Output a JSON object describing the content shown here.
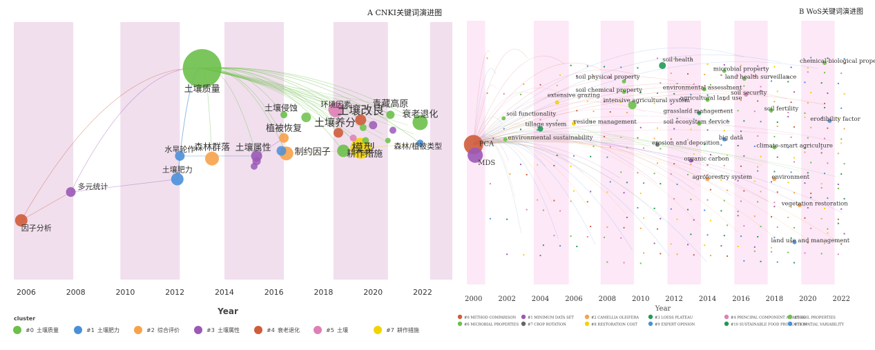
{
  "colors": {
    "c0": "#6cc04a",
    "c1": "#4a90d9",
    "c2": "#f7a24b",
    "c3": "#9b59b6",
    "c4": "#cf5c3a",
    "c5": "#de7fb5",
    "c6": "#6cc04a",
    "c7": "#f2d300",
    "c8": "#f2d300",
    "c9": "#4a90d9",
    "c10": "#1f9a55",
    "c11": "#4a90d9",
    "band_a": "#f1dfee",
    "band_b": "#fde8f7"
  },
  "panel_a": {
    "title": "A   CNKI关键词演进图",
    "xlabel": "Year",
    "ticks": [
      "2006",
      "2008",
      "2010",
      "2012",
      "2014",
      "2016",
      "2018",
      "2020",
      "2022"
    ],
    "legend_title": "cluster",
    "legend": [
      {
        "id": "#0",
        "label": "土壤质量",
        "color": "c0"
      },
      {
        "id": "#1",
        "label": "土壤肥力",
        "color": "c1"
      },
      {
        "id": "#2",
        "label": "综合评价",
        "color": "c2"
      },
      {
        "id": "#3",
        "label": "土壤属性",
        "color": "c3"
      },
      {
        "id": "#4",
        "label": "衰老退化",
        "color": "c4"
      },
      {
        "id": "#5",
        "label": "土壤",
        "color": "c5"
      },
      {
        "id": "#7",
        "label": "耕作措施",
        "color": "c7"
      }
    ],
    "chart_data": {
      "type": "scatter",
      "x_range": [
        2005.5,
        2023.2
      ],
      "nodes": [
        {
          "label": "土壤质量",
          "x": 2013.1,
          "lane": 0.18,
          "size": 28,
          "cluster": "c0"
        },
        {
          "label": "因子分析",
          "x": 2005.8,
          "lane": 0.77,
          "size": 9,
          "cluster": "c4"
        },
        {
          "label": "多元统计",
          "x": 2007.8,
          "lane": 0.66,
          "size": 7,
          "cluster": "c3"
        },
        {
          "label": "水旱轮作",
          "x": 2012.2,
          "lane": 0.52,
          "size": 7,
          "cluster": "c1"
        },
        {
          "label": "土壤肥力",
          "x": 2012.1,
          "lane": 0.61,
          "size": 9,
          "cluster": "c1"
        },
        {
          "label": "森林群落",
          "x": 2013.5,
          "lane": 0.53,
          "size": 10,
          "cluster": "c2"
        },
        {
          "label": "土壤属性",
          "x": 2015.3,
          "lane": 0.52,
          "size": 8,
          "cluster": "c3"
        },
        {
          "label": "土壤侵蚀",
          "x": 2016.4,
          "lane": 0.36,
          "size": 5,
          "cluster": "c0"
        },
        {
          "label": "植被恢复",
          "x": 2016.4,
          "lane": 0.45,
          "size": 7,
          "cluster": "c2"
        },
        {
          "label": "制约因子",
          "x": 2016.5,
          "lane": 0.51,
          "size": 10,
          "cluster": "c2"
        },
        {
          "label": "环境因素",
          "x": 2018.5,
          "lane": 0.34,
          "size": 11,
          "cluster": "c5"
        },
        {
          "label": "土壤养分",
          "x": 2018.6,
          "lane": 0.43,
          "size": 7,
          "cluster": "c4"
        },
        {
          "label": "模型",
          "x": 2018.8,
          "lane": 0.5,
          "size": 9,
          "cluster": "c0"
        },
        {
          "label": "土壤改良",
          "x": 2019.5,
          "lane": 0.38,
          "size": 8,
          "cluster": "c4"
        },
        {
          "label": "耕作措施",
          "x": 2019.5,
          "lane": 0.49,
          "size": 15,
          "cluster": "c7"
        },
        {
          "label": "青藏高原",
          "x": 2020.7,
          "lane": 0.36,
          "size": 6,
          "cluster": "c0"
        },
        {
          "label": "衰老退化",
          "x": 2021.9,
          "lane": 0.39,
          "size": 11,
          "cluster": "c0"
        },
        {
          "label": "森林/植被类型",
          "x": 2021.9,
          "lane": 0.47,
          "size": 5,
          "cluster": "c1"
        }
      ]
    }
  },
  "panel_b": {
    "title": "B   WoS关键词演进图",
    "xlabel": "Year",
    "ticks": [
      "2000",
      "2002",
      "2004",
      "2006",
      "2008",
      "2010",
      "2012",
      "2014",
      "2016",
      "2018",
      "2020",
      "2022"
    ],
    "legend": [
      {
        "label": "#0 METHOD COMPARISON",
        "color": "c4"
      },
      {
        "label": "#1 MINIMUM DATA SET",
        "color": "c3"
      },
      {
        "label": "#2 CAMELLIA OLEIFERA",
        "color": "c2"
      },
      {
        "label": "#3 LOESS PLATEAU",
        "color": "c10"
      },
      {
        "label": "#4 PRINCIPAL COMPONENT ANALYSIS",
        "color": "c5"
      },
      {
        "label": "#5 SOIL PROPERTIES",
        "color": "c0"
      },
      {
        "label": "#6 MICROBIAL PROPERTIES",
        "color": "c0"
      },
      {
        "label": "#7 CROP ROTATION",
        "color": "gray"
      },
      {
        "label": "#8 RESTORATION COST",
        "color": "c7"
      },
      {
        "label": "#9 EXPERT OPINION",
        "color": "c1"
      },
      {
        "label": "#10 SUSTAINABLE FOOD PRODUCTION",
        "color": "c10"
      },
      {
        "label": "#11 SPATIAL VARIABILITY",
        "color": "c1"
      }
    ],
    "chart_data": {
      "type": "scatter",
      "x_range": [
        1999.6,
        2022.9
      ],
      "nodes": [
        {
          "label": "PCA",
          "x": 2000.0,
          "lane": 0.47,
          "size": 14,
          "cluster": "c4"
        },
        {
          "label": "MDS",
          "x": 2000.1,
          "lane": 0.51,
          "size": 11,
          "cluster": "c3"
        },
        {
          "label": "soil functionality",
          "x": 2001.8,
          "lane": 0.37,
          "size": 3,
          "cluster": "c0"
        },
        {
          "label": "environmental sustainability",
          "x": 2001.9,
          "lane": 0.45,
          "size": 3,
          "cluster": "c0"
        },
        {
          "label": "tillage system",
          "x": 2004.0,
          "lane": 0.41,
          "size": 4,
          "cluster": "c10"
        },
        {
          "label": "extensive grazing",
          "x": 2005.0,
          "lane": 0.31,
          "size": 3,
          "cluster": "c7"
        },
        {
          "label": "residue management",
          "x": 2006.0,
          "lane": 0.39,
          "size": 3,
          "cluster": "c7"
        },
        {
          "label": "soil physical property",
          "x": 2009.0,
          "lane": 0.23,
          "size": 3,
          "cluster": "c0"
        },
        {
          "label": "soil chemical property",
          "x": 2009.0,
          "lane": 0.27,
          "size": 3,
          "cluster": "c0"
        },
        {
          "label": "intensive agricultural system",
          "x": 2009.5,
          "lane": 0.32,
          "size": 6,
          "cluster": "c0"
        },
        {
          "label": "soil health",
          "x": 2011.3,
          "lane": 0.17,
          "size": 5,
          "cluster": "c10"
        },
        {
          "label": "erosion and deposition",
          "x": 2011.0,
          "lane": 0.47,
          "size": 3,
          "cluster": "gray"
        },
        {
          "label": "environmental assessment",
          "x": 2013.8,
          "lane": 0.26,
          "size": 3,
          "cluster": "c0"
        },
        {
          "label": "agricultural land use",
          "x": 2014.0,
          "lane": 0.3,
          "size": 3,
          "cluster": "c0"
        },
        {
          "label": "grassland management",
          "x": 2013.5,
          "lane": 0.35,
          "size": 3,
          "cluster": "c10"
        },
        {
          "label": "soil ecosystem service",
          "x": 2013.5,
          "lane": 0.39,
          "size": 3,
          "cluster": "c0"
        },
        {
          "label": "organic carbon",
          "x": 2013.0,
          "lane": 0.53,
          "size": 3,
          "cluster": "c3"
        },
        {
          "label": "agroforestry system",
          "x": 2014.0,
          "lane": 0.6,
          "size": 3,
          "cluster": "c2"
        },
        {
          "label": "microbial property",
          "x": 2015.0,
          "lane": 0.19,
          "size": 3,
          "cluster": "c0"
        },
        {
          "label": "big data",
          "x": 2015.0,
          "lane": 0.45,
          "size": 3,
          "cluster": "c1"
        },
        {
          "label": "land health surveillance",
          "x": 2016.2,
          "lane": 0.22,
          "size": 3,
          "cluster": "c0"
        },
        {
          "label": "soil security",
          "x": 2016.3,
          "lane": 0.28,
          "size": 3,
          "cluster": "c5"
        },
        {
          "label": "soil fertility",
          "x": 2017.8,
          "lane": 0.34,
          "size": 3,
          "cluster": "c0"
        },
        {
          "label": "climate-smart agriculture",
          "x": 2018.0,
          "lane": 0.48,
          "size": 3,
          "cluster": "c0"
        },
        {
          "label": "environment",
          "x": 2018.0,
          "lane": 0.6,
          "size": 3,
          "cluster": "c2"
        },
        {
          "label": "vegetation restoration",
          "x": 2019.5,
          "lane": 0.7,
          "size": 3,
          "cluster": "c2"
        },
        {
          "label": "land use and management",
          "x": 2019.2,
          "lane": 0.84,
          "size": 3,
          "cluster": "c1"
        },
        {
          "label": "chemical-biological property",
          "x": 2021.0,
          "lane": 0.16,
          "size": 3,
          "cluster": "c0"
        },
        {
          "label": "erodibility factor",
          "x": 2021.3,
          "lane": 0.38,
          "size": 3,
          "cluster": "c1"
        }
      ]
    }
  }
}
